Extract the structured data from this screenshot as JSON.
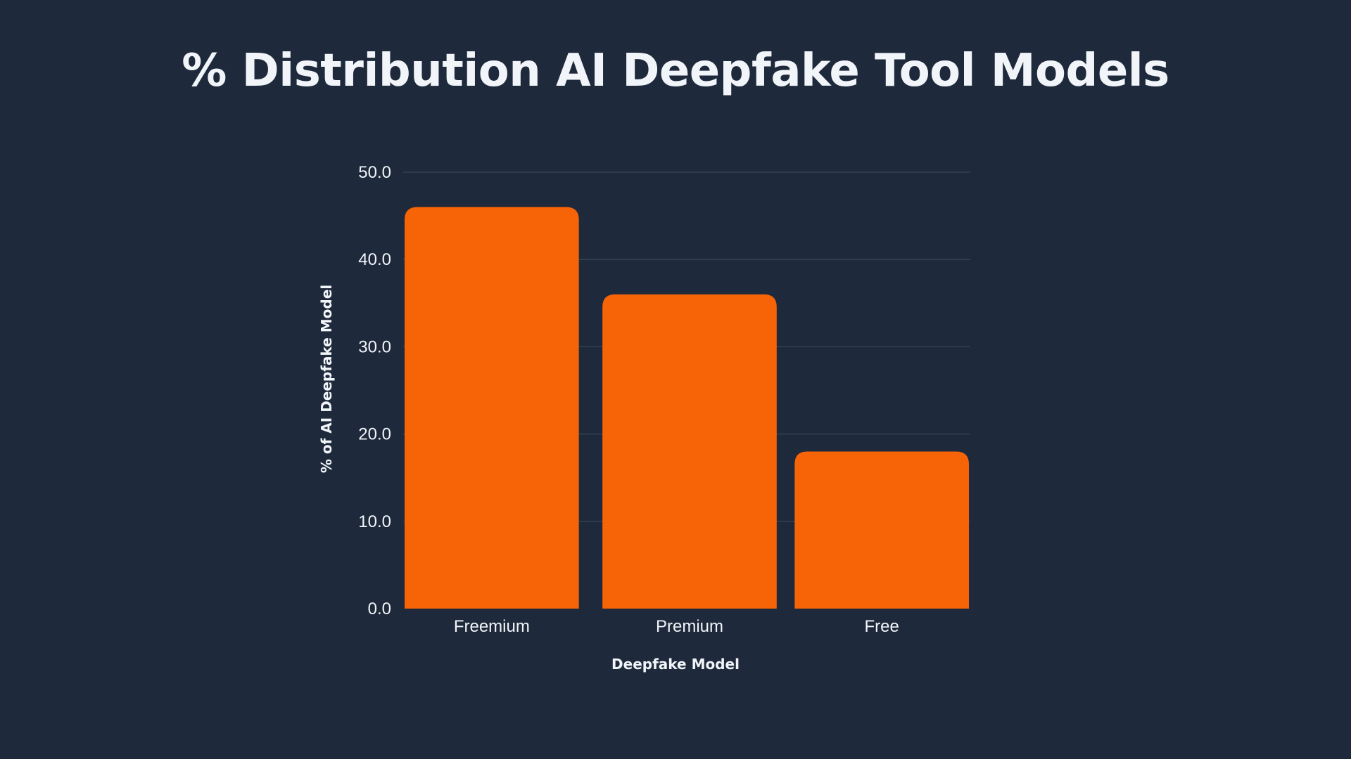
{
  "chart_data": {
    "type": "bar",
    "title": "% Distribution AI Deepfake Tool Models",
    "xlabel": "Deepfake Model",
    "ylabel": "% of  AI Deepfake Model",
    "categories": [
      "Freemium",
      "Premium",
      "Free"
    ],
    "values": [
      46,
      36,
      18
    ],
    "ylim": [
      0,
      50
    ],
    "yticks": [
      "0.0",
      "10.0",
      "20.0",
      "30.0",
      "40.0",
      "50.0"
    ],
    "grid": true,
    "bar_color": "#f76307",
    "grid_color": "#334155",
    "background_color": "#1e293b"
  }
}
